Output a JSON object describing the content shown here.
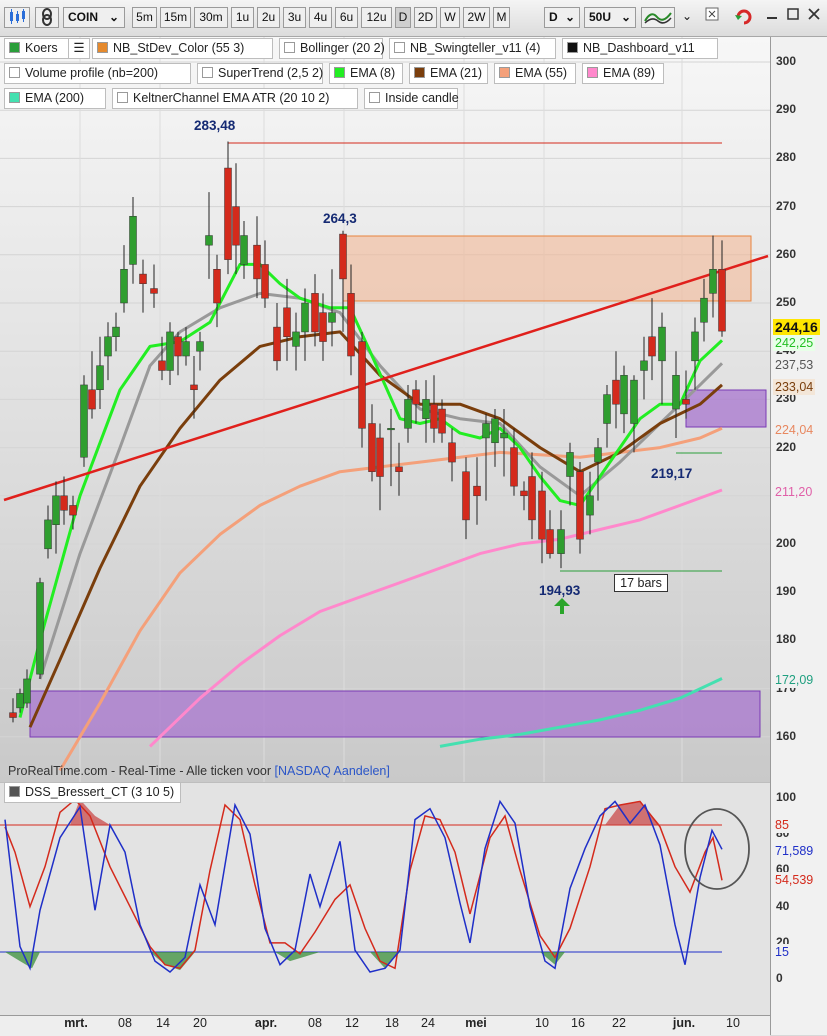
{
  "toolbar": {
    "symbol": "COIN",
    "timeframes": [
      "5m",
      "15m",
      "30m",
      "1u",
      "2u",
      "3u",
      "4u",
      "6u",
      "12u",
      "D",
      "2D",
      "W",
      "2W",
      "M"
    ],
    "active_timeframe": "D",
    "period_select": "D",
    "units_select": "50U"
  },
  "indicators_row1": [
    {
      "label": "Koers",
      "color": "#2a9e3a"
    },
    {
      "label": "NB_StDev_Color (55 3)",
      "color": "#e58a2e"
    },
    {
      "label": "Bollinger (20 2)",
      "color": "#ffffff"
    },
    {
      "label": "NB_Swingteller_v11 (4)",
      "color": "#ffffff"
    },
    {
      "label": "NB_Dashboard_v11",
      "color": "#111111"
    }
  ],
  "indicators_row2": [
    {
      "label": "Volume profile (nb=200)",
      "color": "#ffffff"
    },
    {
      "label": "SuperTrend (2,5 2)",
      "color": "#ffffff"
    },
    {
      "label": "EMA (8)",
      "color": "#22ee22"
    },
    {
      "label": "EMA (21)",
      "color": "#7a3e0c"
    },
    {
      "label": "EMA (55)",
      "color": "#f4a07a"
    },
    {
      "label": "EMA (89)",
      "color": "#ff88cc"
    }
  ],
  "indicators_row3": [
    {
      "label": "EMA (200)",
      "color": "#44e0b0"
    },
    {
      "label": "KeltnerChannel EMA ATR (20 10 2)",
      "color": "#ffffff"
    },
    {
      "label": "Inside candle",
      "color": "#ffffff"
    }
  ],
  "annotations": {
    "high1": "283,48",
    "high2": "264,3",
    "low1": "194,93",
    "low2": "219,17",
    "bars": "17 bars"
  },
  "price_axis": {
    "ticks": [
      "300",
      "290",
      "280",
      "270",
      "260",
      "250",
      "240",
      "230",
      "220",
      "210",
      "200",
      "190",
      "180",
      "170",
      "160"
    ],
    "last_price": "244,16",
    "tags": {
      "ema8": "242,25",
      "bb": "237,53",
      "ema21": "233,04",
      "ema55": "224,04",
      "ema89": "211,20",
      "ema200": "172,09"
    }
  },
  "source_line": {
    "text": "ProRealTime.com - Real-Time - Alle ticken voor ",
    "exchange": "[NASDAQ Aandelen]"
  },
  "oscillator": {
    "name": "DSS_Bressert_CT (3 10 5)",
    "ticks": [
      "100",
      "80",
      "60",
      "40",
      "20",
      "0"
    ],
    "level_high": "85",
    "level_low": "15",
    "value_blue": "71,589",
    "value_red": "54,539"
  },
  "x_axis": {
    "labels": [
      {
        "text": "mrt.",
        "bold": true
      },
      {
        "text": "08",
        "bold": false
      },
      {
        "text": "14",
        "bold": false
      },
      {
        "text": "20",
        "bold": false
      },
      {
        "text": "apr.",
        "bold": true
      },
      {
        "text": "08",
        "bold": false
      },
      {
        "text": "12",
        "bold": false
      },
      {
        "text": "18",
        "bold": false
      },
      {
        "text": "24",
        "bold": false
      },
      {
        "text": "mei",
        "bold": true
      },
      {
        "text": "10",
        "bold": false
      },
      {
        "text": "16",
        "bold": false
      },
      {
        "text": "22",
        "bold": false
      },
      {
        "text": "jun.",
        "bold": true
      },
      {
        "text": "10",
        "bold": false
      }
    ]
  },
  "colors": {
    "up": "#2f9e2f",
    "down": "#d42a1c",
    "trendline": "#e0201c",
    "zone": "#8a4fc8"
  }
}
